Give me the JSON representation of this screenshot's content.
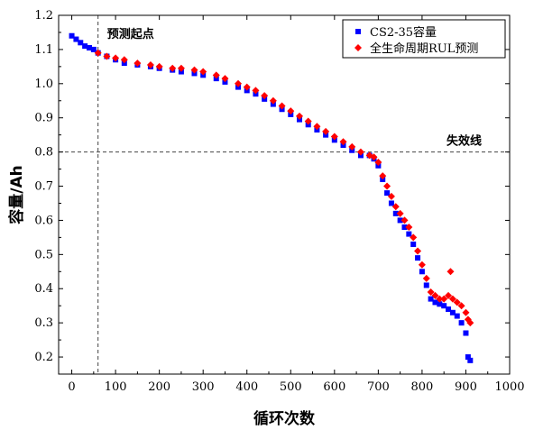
{
  "chart_data": {
    "type": "scatter",
    "xlabel": "循环次数",
    "ylabel": "容量/Ah",
    "xlim": [
      -30,
      1000
    ],
    "ylim": [
      0.15,
      1.2
    ],
    "xticks": [
      "0",
      "100",
      "200",
      "300",
      "400",
      "500",
      "600",
      "700",
      "800",
      "900",
      "1000"
    ],
    "yticks": [
      "0.2",
      "0.3",
      "0.4",
      "0.5",
      "0.6",
      "0.7",
      "0.8",
      "0.9",
      "1.0",
      "1.1",
      "1.2"
    ],
    "legend_position": "top-right",
    "threshold": {
      "y": 0.8,
      "label": "失效线"
    },
    "prediction_start": {
      "x": 60,
      "label": "预测起点"
    },
    "series": [
      {
        "name": "CS2-35容量",
        "color": "#0000ff",
        "marker": "square",
        "x": [
          0,
          10,
          20,
          30,
          40,
          50,
          60,
          80,
          100,
          120,
          150,
          180,
          200,
          230,
          250,
          280,
          300,
          330,
          350,
          380,
          400,
          420,
          440,
          460,
          480,
          500,
          520,
          540,
          560,
          580,
          600,
          620,
          640,
          660,
          680,
          690,
          700,
          710,
          720,
          730,
          740,
          750,
          760,
          770,
          780,
          790,
          800,
          810,
          820,
          830,
          840,
          850,
          860,
          870,
          880,
          890,
          900,
          905,
          910
        ],
        "y": [
          1.14,
          1.13,
          1.12,
          1.11,
          1.105,
          1.1,
          1.09,
          1.08,
          1.07,
          1.06,
          1.055,
          1.05,
          1.045,
          1.04,
          1.035,
          1.03,
          1.025,
          1.015,
          1.005,
          0.99,
          0.98,
          0.97,
          0.955,
          0.94,
          0.925,
          0.91,
          0.895,
          0.88,
          0.865,
          0.85,
          0.835,
          0.82,
          0.805,
          0.79,
          0.79,
          0.78,
          0.76,
          0.72,
          0.68,
          0.65,
          0.62,
          0.6,
          0.58,
          0.56,
          0.53,
          0.49,
          0.45,
          0.41,
          0.37,
          0.36,
          0.355,
          0.35,
          0.34,
          0.33,
          0.32,
          0.3,
          0.27,
          0.2,
          0.19
        ]
      },
      {
        "name": "全生命周期RUL预测",
        "color": "#ff0000",
        "marker": "diamond",
        "x": [
          60,
          80,
          100,
          120,
          150,
          180,
          200,
          230,
          250,
          280,
          300,
          330,
          350,
          380,
          400,
          420,
          440,
          460,
          480,
          500,
          520,
          540,
          560,
          580,
          600,
          620,
          640,
          660,
          680,
          690,
          700,
          710,
          720,
          730,
          740,
          750,
          760,
          770,
          780,
          790,
          800,
          810,
          820,
          830,
          840,
          850,
          860,
          865,
          870,
          880,
          890,
          900,
          905,
          910
        ],
        "y": [
          1.09,
          1.08,
          1.075,
          1.07,
          1.06,
          1.055,
          1.05,
          1.045,
          1.045,
          1.04,
          1.035,
          1.025,
          1.015,
          1.0,
          0.99,
          0.98,
          0.965,
          0.95,
          0.935,
          0.92,
          0.905,
          0.89,
          0.875,
          0.86,
          0.845,
          0.83,
          0.815,
          0.8,
          0.79,
          0.785,
          0.77,
          0.73,
          0.7,
          0.67,
          0.64,
          0.62,
          0.6,
          0.58,
          0.55,
          0.51,
          0.47,
          0.43,
          0.39,
          0.38,
          0.37,
          0.37,
          0.38,
          0.45,
          0.37,
          0.36,
          0.35,
          0.33,
          0.31,
          0.3
        ]
      }
    ]
  }
}
